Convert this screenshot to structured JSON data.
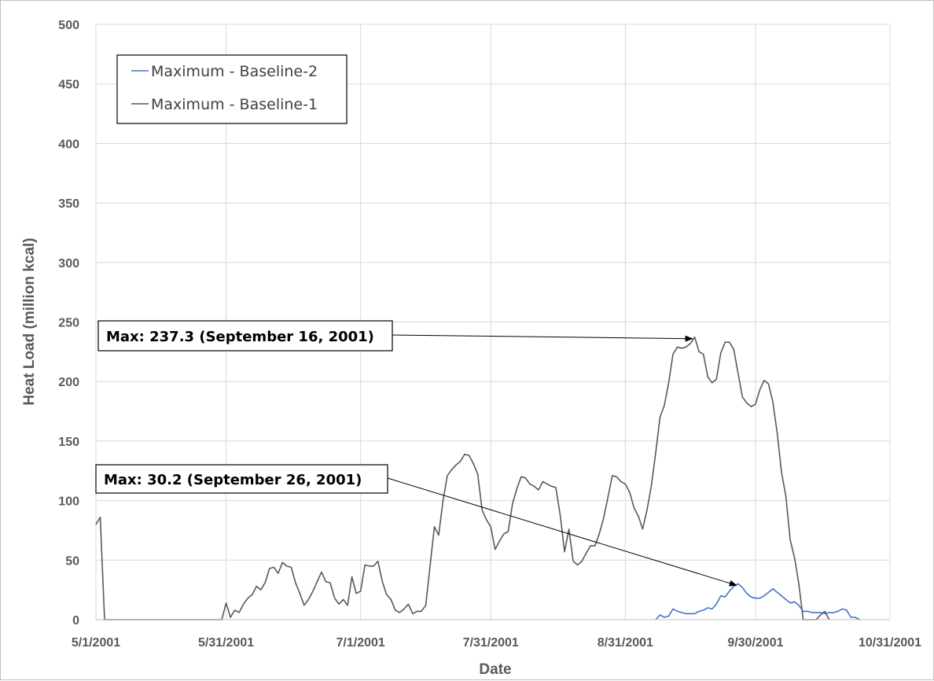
{
  "chart_data": {
    "type": "line",
    "xlabel": "Date",
    "ylabel": "Heat Load (million kcal)",
    "ylim": [
      0,
      500
    ],
    "yticks": [
      0,
      50,
      100,
      150,
      200,
      250,
      300,
      350,
      400,
      450,
      500
    ],
    "xlim": [
      "2001-05-01",
      "2001-10-31"
    ],
    "xticks": [
      {
        "date": "2001-05-01",
        "label": "5/1/2001"
      },
      {
        "date": "2001-05-31",
        "label": "5/31/2001"
      },
      {
        "date": "2001-07-01",
        "label": "7/1/2001"
      },
      {
        "date": "2001-07-31",
        "label": "7/31/2001"
      },
      {
        "date": "2001-08-31",
        "label": "8/31/2001"
      },
      {
        "date": "2001-09-30",
        "label": "9/30/2001"
      },
      {
        "date": "2001-10-31",
        "label": "10/31/2001"
      }
    ],
    "grid": true,
    "legend_position": "top-left",
    "series": [
      {
        "name": "Maximum - Baseline-2",
        "color": "#4472c4",
        "points": [
          [
            "2001-09-07",
            0
          ],
          [
            "2001-09-08",
            4
          ],
          [
            "2001-09-09",
            2
          ],
          [
            "2001-09-10",
            3
          ],
          [
            "2001-09-11",
            9
          ],
          [
            "2001-09-12",
            7
          ],
          [
            "2001-09-13",
            6
          ],
          [
            "2001-09-14",
            5
          ],
          [
            "2001-09-15",
            5
          ],
          [
            "2001-09-16",
            5
          ],
          [
            "2001-09-17",
            7
          ],
          [
            "2001-09-18",
            8
          ],
          [
            "2001-09-19",
            10
          ],
          [
            "2001-09-20",
            9
          ],
          [
            "2001-09-21",
            13
          ],
          [
            "2001-09-22",
            20
          ],
          [
            "2001-09-23",
            19
          ],
          [
            "2001-09-24",
            24
          ],
          [
            "2001-09-25",
            28
          ],
          [
            "2001-09-26",
            30.2
          ],
          [
            "2001-09-27",
            27
          ],
          [
            "2001-09-28",
            22
          ],
          [
            "2001-09-29",
            19
          ],
          [
            "2001-09-30",
            18
          ],
          [
            "2001-10-01",
            18
          ],
          [
            "2001-10-02",
            20
          ],
          [
            "2001-10-03",
            23
          ],
          [
            "2001-10-04",
            26
          ],
          [
            "2001-10-05",
            23
          ],
          [
            "2001-10-06",
            20
          ],
          [
            "2001-10-07",
            17
          ],
          [
            "2001-10-08",
            14
          ],
          [
            "2001-10-09",
            15
          ],
          [
            "2001-10-10",
            12
          ],
          [
            "2001-10-11",
            7
          ],
          [
            "2001-10-12",
            7
          ],
          [
            "2001-10-13",
            6
          ],
          [
            "2001-10-14",
            6
          ],
          [
            "2001-10-15",
            6
          ],
          [
            "2001-10-16",
            5
          ],
          [
            "2001-10-17",
            6
          ],
          [
            "2001-10-18",
            6
          ],
          [
            "2001-10-19",
            7
          ],
          [
            "2001-10-20",
            9
          ],
          [
            "2001-10-21",
            8
          ],
          [
            "2001-10-22",
            2
          ],
          [
            "2001-10-23",
            2
          ],
          [
            "2001-10-24",
            0
          ]
        ]
      },
      {
        "name": "Maximum - Baseline-1",
        "color": "#595959",
        "points": [
          [
            "2001-05-01",
            80
          ],
          [
            "2001-05-02",
            86
          ],
          [
            "2001-05-03",
            0
          ],
          [
            "2001-05-30",
            0
          ],
          [
            "2001-05-31",
            14
          ],
          [
            "2001-06-01",
            2
          ],
          [
            "2001-06-02",
            8
          ],
          [
            "2001-06-03",
            6
          ],
          [
            "2001-06-04",
            13
          ],
          [
            "2001-06-05",
            18
          ],
          [
            "2001-06-06",
            21
          ],
          [
            "2001-06-07",
            28
          ],
          [
            "2001-06-08",
            25
          ],
          [
            "2001-06-09",
            31
          ],
          [
            "2001-06-10",
            43
          ],
          [
            "2001-06-11",
            44
          ],
          [
            "2001-06-12",
            39
          ],
          [
            "2001-06-13",
            48
          ],
          [
            "2001-06-14",
            45
          ],
          [
            "2001-06-15",
            44
          ],
          [
            "2001-06-16",
            31
          ],
          [
            "2001-06-17",
            22
          ],
          [
            "2001-06-18",
            12
          ],
          [
            "2001-06-19",
            17
          ],
          [
            "2001-06-20",
            24
          ],
          [
            "2001-06-21",
            32
          ],
          [
            "2001-06-22",
            40
          ],
          [
            "2001-06-23",
            32
          ],
          [
            "2001-06-24",
            31
          ],
          [
            "2001-06-25",
            18
          ],
          [
            "2001-06-26",
            13
          ],
          [
            "2001-06-27",
            17
          ],
          [
            "2001-06-28",
            12
          ],
          [
            "2001-06-29",
            36
          ],
          [
            "2001-06-30",
            22
          ],
          [
            "2001-07-01",
            24
          ],
          [
            "2001-07-02",
            46
          ],
          [
            "2001-07-03",
            45
          ],
          [
            "2001-07-04",
            45
          ],
          [
            "2001-07-05",
            49
          ],
          [
            "2001-07-06",
            32
          ],
          [
            "2001-07-07",
            21
          ],
          [
            "2001-07-08",
            17
          ],
          [
            "2001-07-09",
            8
          ],
          [
            "2001-07-10",
            6
          ],
          [
            "2001-07-11",
            9
          ],
          [
            "2001-07-12",
            13
          ],
          [
            "2001-07-13",
            5
          ],
          [
            "2001-07-14",
            7
          ],
          [
            "2001-07-15",
            7
          ],
          [
            "2001-07-16",
            12
          ],
          [
            "2001-07-17",
            45
          ],
          [
            "2001-07-18",
            78
          ],
          [
            "2001-07-19",
            71
          ],
          [
            "2001-07-20",
            100
          ],
          [
            "2001-07-21",
            121
          ],
          [
            "2001-07-22",
            126
          ],
          [
            "2001-07-23",
            130
          ],
          [
            "2001-07-24",
            133
          ],
          [
            "2001-07-25",
            139
          ],
          [
            "2001-07-26",
            138
          ],
          [
            "2001-07-27",
            131
          ],
          [
            "2001-07-28",
            122
          ],
          [
            "2001-07-29",
            92
          ],
          [
            "2001-07-30",
            84
          ],
          [
            "2001-07-31",
            78
          ],
          [
            "2001-08-01",
            59
          ],
          [
            "2001-08-02",
            66
          ],
          [
            "2001-08-03",
            72
          ],
          [
            "2001-08-04",
            74
          ],
          [
            "2001-08-05",
            97
          ],
          [
            "2001-08-06",
            110
          ],
          [
            "2001-08-07",
            120
          ],
          [
            "2001-08-08",
            119
          ],
          [
            "2001-08-09",
            114
          ],
          [
            "2001-08-10",
            112
          ],
          [
            "2001-08-11",
            109
          ],
          [
            "2001-08-12",
            116
          ],
          [
            "2001-08-13",
            114
          ],
          [
            "2001-08-14",
            112
          ],
          [
            "2001-08-15",
            111
          ],
          [
            "2001-08-16",
            88
          ],
          [
            "2001-08-17",
            57
          ],
          [
            "2001-08-18",
            76
          ],
          [
            "2001-08-19",
            49
          ],
          [
            "2001-08-20",
            46
          ],
          [
            "2001-08-21",
            49
          ],
          [
            "2001-08-22",
            56
          ],
          [
            "2001-08-23",
            62
          ],
          [
            "2001-08-24",
            62
          ],
          [
            "2001-08-25",
            72
          ],
          [
            "2001-08-26",
            85
          ],
          [
            "2001-08-27",
            103
          ],
          [
            "2001-08-28",
            121
          ],
          [
            "2001-08-29",
            120
          ],
          [
            "2001-08-30",
            116
          ],
          [
            "2001-08-31",
            114
          ],
          [
            "2001-09-01",
            107
          ],
          [
            "2001-09-02",
            94
          ],
          [
            "2001-09-03",
            87
          ],
          [
            "2001-09-04",
            76
          ],
          [
            "2001-09-05",
            92
          ],
          [
            "2001-09-06",
            112
          ],
          [
            "2001-09-07",
            140
          ],
          [
            "2001-09-08",
            170
          ],
          [
            "2001-09-09",
            180
          ],
          [
            "2001-09-10",
            199
          ],
          [
            "2001-09-11",
            223
          ],
          [
            "2001-09-12",
            229
          ],
          [
            "2001-09-13",
            228
          ],
          [
            "2001-09-14",
            229
          ],
          [
            "2001-09-15",
            232
          ],
          [
            "2001-09-16",
            237.3
          ],
          [
            "2001-09-17",
            225
          ],
          [
            "2001-09-18",
            223
          ],
          [
            "2001-09-19",
            204
          ],
          [
            "2001-09-20",
            199
          ],
          [
            "2001-09-21",
            202
          ],
          [
            "2001-09-22",
            224
          ],
          [
            "2001-09-23",
            233
          ],
          [
            "2001-09-24",
            233
          ],
          [
            "2001-09-25",
            227
          ],
          [
            "2001-09-26",
            207
          ],
          [
            "2001-09-27",
            187
          ],
          [
            "2001-09-28",
            182
          ],
          [
            "2001-09-29",
            179
          ],
          [
            "2001-09-30",
            181
          ],
          [
            "2001-10-01",
            193
          ],
          [
            "2001-10-02",
            201
          ],
          [
            "2001-10-03",
            198
          ],
          [
            "2001-10-04",
            183
          ],
          [
            "2001-10-05",
            157
          ],
          [
            "2001-10-06",
            124
          ],
          [
            "2001-10-07",
            104
          ],
          [
            "2001-10-08",
            67
          ],
          [
            "2001-10-09",
            52
          ],
          [
            "2001-10-10",
            30
          ],
          [
            "2001-10-11",
            0
          ],
          [
            "2001-10-13",
            0
          ],
          [
            "2001-10-14",
            0
          ],
          [
            "2001-10-15",
            4
          ],
          [
            "2001-10-16",
            7
          ],
          [
            "2001-10-17",
            0
          ]
        ]
      }
    ],
    "annotations": [
      {
        "text": "Max: 237.3 (September 16, 2001)",
        "target": [
          "2001-09-16",
          237.3
        ]
      },
      {
        "text": "Max: 30.2 (September 26, 2001)",
        "target": [
          "2001-09-26",
          30.2
        ]
      }
    ]
  }
}
